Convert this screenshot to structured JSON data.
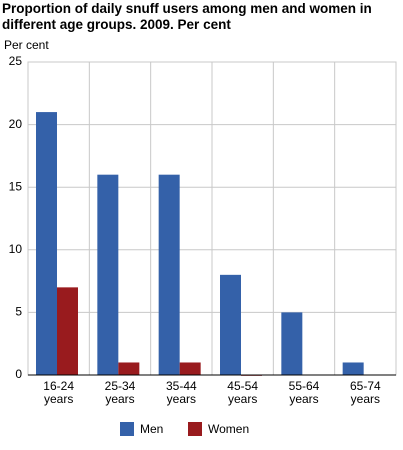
{
  "chart_data": {
    "type": "bar",
    "title": "Proportion of daily snuff users among men and women in different age groups. 2009. Per cent",
    "y_label": "Per cent",
    "categories": [
      "16-24 years",
      "25-34 years",
      "35-44 years",
      "45-54 years",
      "55-64 years",
      "65-74 years"
    ],
    "series": [
      {
        "name": "Men",
        "color": "#3461a9",
        "values": [
          21,
          16,
          16,
          8,
          5,
          1
        ]
      },
      {
        "name": "Women",
        "color": "#991b1e",
        "values": [
          7,
          1,
          1,
          0,
          null,
          null
        ]
      }
    ],
    "ylim": [
      0,
      25
    ],
    "yticks": [
      0,
      5,
      10,
      15,
      20,
      25
    ],
    "grid": true
  }
}
